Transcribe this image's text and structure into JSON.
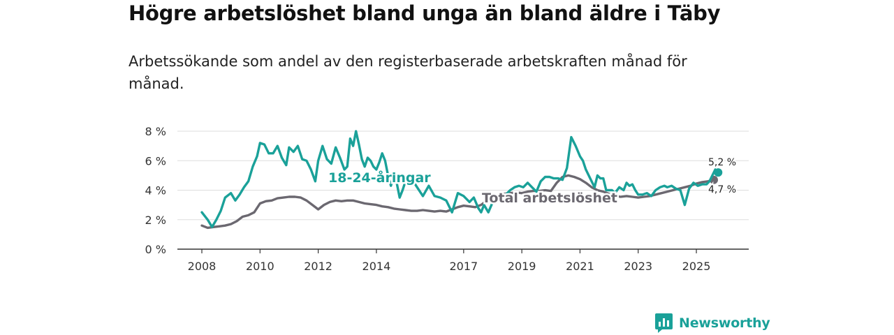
{
  "header": {
    "title": "Högre arbetslöshet bland unga än bland äldre i Täby",
    "subtitle": "Arbetssökande som andel av den registerbaserade arbetskraften månad för månad."
  },
  "brand": {
    "name": "Newsworthy",
    "color": "#1aa199"
  },
  "chart_data": {
    "type": "line",
    "title": "Högre arbetslöshet bland unga än bland äldre i Täby",
    "subtitle": "Arbetssökande som andel av den registerbaserade arbetskraften månad för månad.",
    "xlabel": "",
    "ylabel": "",
    "xlim": [
      2008.0,
      2026.0
    ],
    "ylim": [
      0,
      8
    ],
    "yticks": [
      0,
      2,
      4,
      6,
      8
    ],
    "ytick_labels": [
      "0 %",
      "2 %",
      "4 %",
      "6 %",
      "8 %"
    ],
    "xticks": [
      2008,
      2010,
      2012,
      2014,
      2017,
      2019,
      2021,
      2023,
      2025
    ],
    "xtick_labels": [
      "2008",
      "2010",
      "2012",
      "2014",
      "2017",
      "2019",
      "2021",
      "2023",
      "2025"
    ],
    "grid": true,
    "series": [
      {
        "name": "Total arbetslöshet",
        "label": "Total arbetslöshet",
        "color": "#6b6870",
        "end_label": "4,7 %",
        "points": [
          [
            2008.0,
            1.6
          ],
          [
            2008.2,
            1.45
          ],
          [
            2008.4,
            1.5
          ],
          [
            2008.6,
            1.55
          ],
          [
            2008.8,
            1.6
          ],
          [
            2009.0,
            1.7
          ],
          [
            2009.2,
            1.9
          ],
          [
            2009.4,
            2.2
          ],
          [
            2009.6,
            2.3
          ],
          [
            2009.8,
            2.5
          ],
          [
            2010.0,
            3.1
          ],
          [
            2010.2,
            3.25
          ],
          [
            2010.4,
            3.3
          ],
          [
            2010.6,
            3.45
          ],
          [
            2010.8,
            3.5
          ],
          [
            2011.0,
            3.55
          ],
          [
            2011.2,
            3.55
          ],
          [
            2011.4,
            3.5
          ],
          [
            2011.6,
            3.3
          ],
          [
            2011.8,
            3.0
          ],
          [
            2012.0,
            2.7
          ],
          [
            2012.2,
            3.0
          ],
          [
            2012.4,
            3.2
          ],
          [
            2012.6,
            3.3
          ],
          [
            2012.8,
            3.25
          ],
          [
            2013.0,
            3.3
          ],
          [
            2013.2,
            3.3
          ],
          [
            2013.4,
            3.2
          ],
          [
            2013.6,
            3.1
          ],
          [
            2013.8,
            3.05
          ],
          [
            2014.0,
            3.0
          ],
          [
            2014.2,
            2.9
          ],
          [
            2014.4,
            2.85
          ],
          [
            2014.6,
            2.75
          ],
          [
            2014.8,
            2.7
          ],
          [
            2015.0,
            2.65
          ],
          [
            2015.2,
            2.6
          ],
          [
            2015.4,
            2.6
          ],
          [
            2015.6,
            2.65
          ],
          [
            2015.8,
            2.6
          ],
          [
            2016.0,
            2.55
          ],
          [
            2016.2,
            2.6
          ],
          [
            2016.4,
            2.55
          ],
          [
            2016.6,
            2.7
          ],
          [
            2016.8,
            2.85
          ],
          [
            2017.0,
            2.95
          ],
          [
            2017.2,
            2.9
          ],
          [
            2017.4,
            2.85
          ],
          [
            2017.6,
            3.0
          ],
          [
            2017.8,
            3.3
          ],
          [
            2018.0,
            3.55
          ],
          [
            2018.2,
            3.65
          ],
          [
            2018.4,
            3.75
          ],
          [
            2018.6,
            3.8
          ],
          [
            2018.8,
            3.85
          ],
          [
            2019.0,
            3.8
          ],
          [
            2019.2,
            3.9
          ],
          [
            2019.4,
            3.95
          ],
          [
            2019.6,
            3.95
          ],
          [
            2019.8,
            4.0
          ],
          [
            2020.0,
            3.95
          ],
          [
            2020.2,
            4.5
          ],
          [
            2020.4,
            4.9
          ],
          [
            2020.6,
            5.0
          ],
          [
            2020.8,
            4.9
          ],
          [
            2021.0,
            4.75
          ],
          [
            2021.2,
            4.5
          ],
          [
            2021.4,
            4.2
          ],
          [
            2021.6,
            4.0
          ],
          [
            2021.8,
            3.9
          ],
          [
            2022.0,
            3.75
          ],
          [
            2022.2,
            3.6
          ],
          [
            2022.4,
            3.55
          ],
          [
            2022.6,
            3.6
          ],
          [
            2022.8,
            3.55
          ],
          [
            2023.0,
            3.5
          ],
          [
            2023.2,
            3.55
          ],
          [
            2023.4,
            3.6
          ],
          [
            2023.6,
            3.7
          ],
          [
            2023.8,
            3.8
          ],
          [
            2024.0,
            3.9
          ],
          [
            2024.2,
            4.0
          ],
          [
            2024.4,
            4.1
          ],
          [
            2024.6,
            4.2
          ],
          [
            2024.8,
            4.3
          ],
          [
            2025.0,
            4.45
          ],
          [
            2025.2,
            4.55
          ],
          [
            2025.4,
            4.6
          ],
          [
            2025.6,
            4.7
          ]
        ]
      },
      {
        "name": "18-24-åringar",
        "label": "18-24-åringar",
        "color": "#1aa199",
        "end_label": "5,2 %",
        "points": [
          [
            2008.0,
            2.5
          ],
          [
            2008.2,
            2.0
          ],
          [
            2008.35,
            1.5
          ],
          [
            2008.5,
            2.0
          ],
          [
            2008.65,
            2.6
          ],
          [
            2008.8,
            3.5
          ],
          [
            2009.0,
            3.8
          ],
          [
            2009.15,
            3.3
          ],
          [
            2009.3,
            3.7
          ],
          [
            2009.45,
            4.2
          ],
          [
            2009.6,
            4.6
          ],
          [
            2009.75,
            5.6
          ],
          [
            2009.9,
            6.3
          ],
          [
            2010.0,
            7.2
          ],
          [
            2010.15,
            7.1
          ],
          [
            2010.3,
            6.5
          ],
          [
            2010.45,
            6.5
          ],
          [
            2010.6,
            7.0
          ],
          [
            2010.75,
            6.2
          ],
          [
            2010.9,
            5.7
          ],
          [
            2011.0,
            6.9
          ],
          [
            2011.15,
            6.6
          ],
          [
            2011.3,
            7.0
          ],
          [
            2011.45,
            6.1
          ],
          [
            2011.6,
            6.0
          ],
          [
            2011.75,
            5.4
          ],
          [
            2011.9,
            4.6
          ],
          [
            2012.0,
            6.0
          ],
          [
            2012.15,
            7.0
          ],
          [
            2012.3,
            6.1
          ],
          [
            2012.45,
            5.8
          ],
          [
            2012.6,
            6.9
          ],
          [
            2012.75,
            6.2
          ],
          [
            2012.9,
            5.4
          ],
          [
            2013.0,
            5.6
          ],
          [
            2013.1,
            7.5
          ],
          [
            2013.2,
            7.0
          ],
          [
            2013.3,
            8.0
          ],
          [
            2013.4,
            7.1
          ],
          [
            2013.5,
            6.1
          ],
          [
            2013.6,
            5.6
          ],
          [
            2013.7,
            6.2
          ],
          [
            2013.8,
            6.0
          ],
          [
            2013.9,
            5.6
          ],
          [
            2014.0,
            5.4
          ],
          [
            2014.1,
            5.9
          ],
          [
            2014.2,
            6.5
          ],
          [
            2014.3,
            6.0
          ],
          [
            2014.4,
            5.0
          ],
          [
            2014.5,
            4.3
          ],
          [
            2014.6,
            5.0
          ],
          [
            2014.7,
            4.5
          ],
          [
            2014.8,
            3.5
          ],
          [
            2014.9,
            4.0
          ],
          [
            2015.0,
            4.6
          ],
          [
            2015.2,
            4.8
          ],
          [
            2015.4,
            4.2
          ],
          [
            2015.6,
            3.6
          ],
          [
            2015.8,
            4.3
          ],
          [
            2016.0,
            3.6
          ],
          [
            2016.2,
            3.5
          ],
          [
            2016.4,
            3.3
          ],
          [
            2016.6,
            2.5
          ],
          [
            2016.8,
            3.8
          ],
          [
            2017.0,
            3.6
          ],
          [
            2017.2,
            3.2
          ],
          [
            2017.35,
            3.5
          ],
          [
            2017.5,
            2.8
          ],
          [
            2017.6,
            2.5
          ],
          [
            2017.7,
            3.0
          ],
          [
            2017.85,
            2.5
          ],
          [
            2018.0,
            3.2
          ],
          [
            2018.2,
            3.6
          ],
          [
            2018.4,
            3.6
          ],
          [
            2018.6,
            4.0
          ],
          [
            2018.75,
            4.2
          ],
          [
            2018.9,
            4.3
          ],
          [
            2019.05,
            4.2
          ],
          [
            2019.2,
            4.5
          ],
          [
            2019.35,
            4.2
          ],
          [
            2019.5,
            3.9
          ],
          [
            2019.65,
            4.6
          ],
          [
            2019.8,
            4.9
          ],
          [
            2019.95,
            4.9
          ],
          [
            2020.1,
            4.8
          ],
          [
            2020.25,
            4.8
          ],
          [
            2020.4,
            4.7
          ],
          [
            2020.55,
            5.5
          ],
          [
            2020.7,
            7.6
          ],
          [
            2020.85,
            7.0
          ],
          [
            2021.0,
            6.3
          ],
          [
            2021.1,
            6.0
          ],
          [
            2021.2,
            5.4
          ],
          [
            2021.35,
            4.8
          ],
          [
            2021.5,
            4.2
          ],
          [
            2021.6,
            5.0
          ],
          [
            2021.7,
            4.8
          ],
          [
            2021.8,
            4.8
          ],
          [
            2021.9,
            4.0
          ],
          [
            2022.1,
            4.0
          ],
          [
            2022.2,
            3.8
          ],
          [
            2022.35,
            4.2
          ],
          [
            2022.5,
            4.0
          ],
          [
            2022.6,
            4.5
          ],
          [
            2022.7,
            4.3
          ],
          [
            2022.8,
            4.4
          ],
          [
            2022.9,
            4.0
          ],
          [
            2023.0,
            3.7
          ],
          [
            2023.15,
            3.7
          ],
          [
            2023.3,
            3.8
          ],
          [
            2023.45,
            3.6
          ],
          [
            2023.6,
            4.0
          ],
          [
            2023.75,
            4.2
          ],
          [
            2023.9,
            4.3
          ],
          [
            2024.0,
            4.2
          ],
          [
            2024.15,
            4.3
          ],
          [
            2024.3,
            4.1
          ],
          [
            2024.45,
            4.0
          ],
          [
            2024.6,
            3.0
          ],
          [
            2024.75,
            4.1
          ],
          [
            2024.9,
            4.5
          ],
          [
            2025.05,
            4.3
          ],
          [
            2025.2,
            4.4
          ],
          [
            2025.35,
            4.4
          ],
          [
            2025.45,
            4.6
          ],
          [
            2025.55,
            5.0
          ],
          [
            2025.65,
            5.4
          ],
          [
            2025.75,
            5.2
          ]
        ]
      }
    ]
  }
}
